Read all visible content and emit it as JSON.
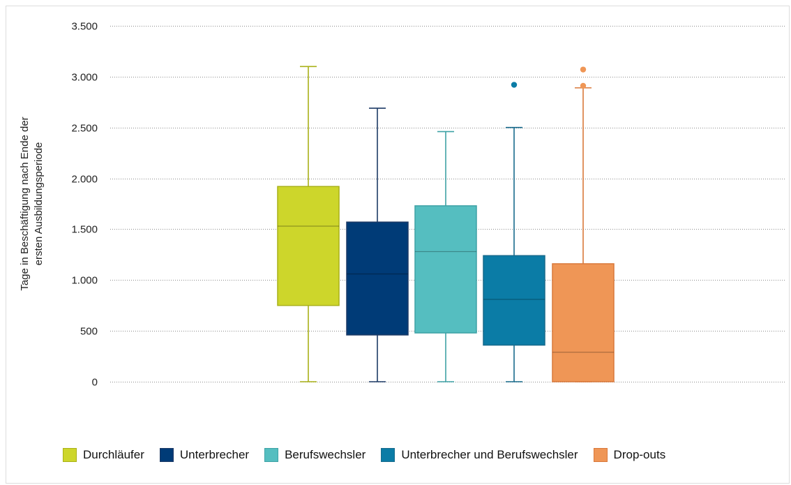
{
  "chart_data": {
    "type": "box",
    "ylabel_line1": "Tage in Beschäftigung nach Ende der",
    "ylabel_line2": "ersten Ausbildungsperiode",
    "ylim": [
      0,
      3500
    ],
    "yticks": [
      0,
      500,
      1000,
      1500,
      2000,
      2500,
      3000,
      3500
    ],
    "ytick_labels": [
      "0",
      "500",
      "1.000",
      "1.500",
      "2.000",
      "2.500",
      "3.000",
      "3.500"
    ],
    "grid": true,
    "legend_position": "bottom",
    "series": [
      {
        "name": "Durchläufer",
        "color": "#cdd62b",
        "stroke": "#a9b117",
        "min": 0,
        "q1": 750,
        "median": 1530,
        "q3": 1920,
        "max": 3100,
        "outliers": []
      },
      {
        "name": "Unterbrecher",
        "color": "#003b77",
        "stroke": "#1d3a66",
        "min": 0,
        "q1": 460,
        "median": 1060,
        "q3": 1570,
        "max": 2690,
        "outliers": []
      },
      {
        "name": "Berufswechsler",
        "color": "#55bec0",
        "stroke": "#3ea2a5",
        "min": 0,
        "q1": 480,
        "median": 1280,
        "q3": 1730,
        "max": 2460,
        "outliers": []
      },
      {
        "name": "Unterbrecher und Berufswechsler",
        "color": "#0b7ca6",
        "stroke": "#176a8c",
        "min": 0,
        "q1": 360,
        "median": 810,
        "q3": 1240,
        "max": 2500,
        "outliers": [
          2920
        ]
      },
      {
        "name": "Drop-outs",
        "color": "#ef9656",
        "stroke": "#d9783a",
        "min": 0,
        "q1": 0,
        "median": 290,
        "q3": 1160,
        "max": 2890,
        "outliers": [
          2910,
          3070
        ]
      }
    ]
  }
}
